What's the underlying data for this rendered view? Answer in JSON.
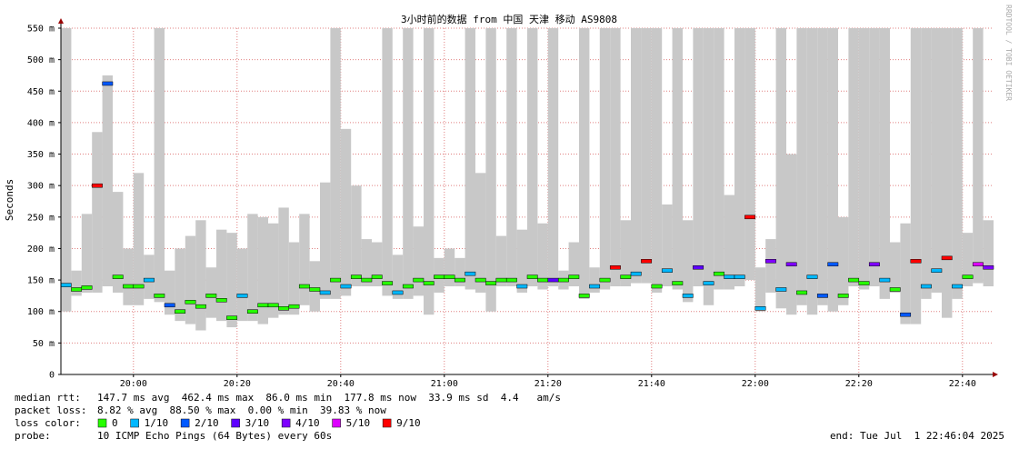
{
  "chart_data": {
    "type": "smokeping",
    "title": "3小时前的数据 from 中国 天津 移动 AS9808",
    "y_label": "Seconds",
    "watermark": "RRDTOOL / TOBI OETIKER",
    "xlim": [
      "19:46",
      "22:46"
    ],
    "xticks": [
      "20:00",
      "20:20",
      "20:40",
      "21:00",
      "21:20",
      "21:40",
      "22:00",
      "22:20",
      "22:40"
    ],
    "ylim": [
      0,
      550
    ],
    "yticks": [
      0,
      {
        "value": 50,
        "label": "50 m"
      },
      {
        "value": 100,
        "label": "100 m"
      },
      {
        "value": 150,
        "label": "150 m"
      },
      {
        "value": 200,
        "label": "200 m"
      },
      {
        "value": 250,
        "label": "250 m"
      },
      {
        "value": 300,
        "label": "300 m"
      },
      {
        "value": 350,
        "label": "350 m"
      },
      {
        "value": 400,
        "label": "400 m"
      },
      {
        "value": 450,
        "label": "450 m"
      },
      {
        "value": 500,
        "label": "500 m"
      },
      {
        "value": 550,
        "label": "550 m"
      }
    ],
    "grid": true,
    "smoke_color": "#c8c8c8",
    "x": [
      "19:46",
      "19:48",
      "19:50",
      "19:52",
      "19:54",
      "19:56",
      "19:58",
      "20:00",
      "20:02",
      "20:04",
      "20:06",
      "20:08",
      "20:10",
      "20:12",
      "20:14",
      "20:16",
      "20:18",
      "20:20",
      "20:22",
      "20:24",
      "20:26",
      "20:28",
      "20:30",
      "20:32",
      "20:34",
      "20:36",
      "20:38",
      "20:40",
      "20:42",
      "20:44",
      "20:46",
      "20:48",
      "20:50",
      "20:52",
      "20:54",
      "20:56",
      "20:58",
      "21:00",
      "21:02",
      "21:04",
      "21:06",
      "21:08",
      "21:10",
      "21:12",
      "21:14",
      "21:16",
      "21:18",
      "21:20",
      "21:22",
      "21:24",
      "21:26",
      "21:28",
      "21:30",
      "21:32",
      "21:34",
      "21:36",
      "21:38",
      "21:40",
      "21:42",
      "21:44",
      "21:46",
      "21:48",
      "21:50",
      "21:52",
      "21:54",
      "21:56",
      "21:58",
      "22:00",
      "22:02",
      "22:04",
      "22:06",
      "22:08",
      "22:10",
      "22:12",
      "22:14",
      "22:16",
      "22:18",
      "22:20",
      "22:22",
      "22:24",
      "22:26",
      "22:28",
      "22:30",
      "22:32",
      "22:34",
      "22:36",
      "22:38",
      "22:40",
      "22:42",
      "22:44"
    ],
    "median": [
      142,
      135,
      138,
      300,
      462,
      155,
      140,
      140,
      150,
      125,
      110,
      100,
      115,
      108,
      125,
      118,
      90,
      125,
      100,
      110,
      110,
      105,
      108,
      140,
      135,
      130,
      150,
      140,
      155,
      150,
      155,
      145,
      130,
      140,
      150,
      145,
      155,
      155,
      150,
      160,
      150,
      145,
      150,
      150,
      140,
      155,
      150,
      150,
      150,
      155,
      125,
      140,
      150,
      170,
      155,
      160,
      180,
      140,
      165,
      145,
      125,
      170,
      145,
      160,
      155,
      155,
      250,
      105,
      180,
      135,
      175,
      130,
      155,
      125,
      175,
      125,
      150,
      145,
      175,
      150,
      135,
      95,
      180,
      140,
      165,
      185,
      140,
      155,
      175,
      170
    ],
    "smoke_min": [
      100,
      125,
      130,
      130,
      140,
      130,
      110,
      110,
      120,
      115,
      95,
      85,
      80,
      70,
      90,
      85,
      75,
      85,
      85,
      80,
      90,
      95,
      95,
      110,
      100,
      120,
      120,
      125,
      140,
      140,
      140,
      125,
      120,
      120,
      125,
      95,
      130,
      140,
      140,
      135,
      130,
      100,
      140,
      140,
      130,
      140,
      135,
      140,
      135,
      140,
      120,
      130,
      135,
      140,
      140,
      145,
      145,
      130,
      140,
      135,
      115,
      140,
      110,
      135,
      135,
      140,
      150,
      100,
      130,
      105,
      95,
      110,
      95,
      110,
      100,
      110,
      140,
      135,
      140,
      120,
      130,
      80,
      80,
      120,
      130,
      90,
      120,
      140,
      145,
      140
    ],
    "smoke_max": [
      550,
      165,
      255,
      385,
      475,
      290,
      200,
      320,
      190,
      550,
      165,
      200,
      220,
      245,
      170,
      230,
      225,
      200,
      255,
      250,
      240,
      265,
      210,
      255,
      180,
      305,
      550,
      390,
      300,
      215,
      210,
      550,
      190,
      550,
      235,
      550,
      185,
      200,
      185,
      550,
      320,
      550,
      220,
      550,
      230,
      550,
      240,
      550,
      165,
      210,
      550,
      170,
      550,
      550,
      245,
      550,
      550,
      550,
      270,
      550,
      245,
      550,
      550,
      550,
      285,
      550,
      550,
      170,
      215,
      550,
      350,
      550,
      550,
      550,
      550,
      250,
      550,
      550,
      550,
      550,
      210,
      240,
      550,
      550,
      550,
      550,
      550,
      225,
      550,
      245
    ],
    "loss": [
      1,
      0,
      0,
      9,
      2,
      0,
      0,
      0,
      1,
      0,
      2,
      0,
      0,
      0,
      0,
      0,
      0,
      1,
      0,
      0,
      0,
      0,
      0,
      0,
      0,
      1,
      0,
      1,
      0,
      0,
      0,
      0,
      1,
      0,
      0,
      0,
      0,
      0,
      0,
      1,
      0,
      0,
      0,
      0,
      1,
      0,
      0,
      3,
      0,
      0,
      0,
      1,
      0,
      9,
      0,
      1,
      9,
      0,
      1,
      0,
      1,
      3,
      1,
      0,
      1,
      1,
      9,
      1,
      4,
      1,
      4,
      0,
      1,
      2,
      2,
      0,
      0,
      0,
      4,
      1,
      0,
      2,
      9,
      1,
      1,
      9,
      1,
      0,
      5,
      4
    ],
    "loss_legend": {
      "label": "loss color:",
      "items": [
        {
          "value": 0,
          "label": "0",
          "color": "#26ff00"
        },
        {
          "value": 1,
          "label": "1/10",
          "color": "#00b8ff"
        },
        {
          "value": 2,
          "label": "2/10",
          "color": "#0059ff"
        },
        {
          "value": 3,
          "label": "3/10",
          "color": "#5e00ff"
        },
        {
          "value": 4,
          "label": "4/10",
          "color": "#7e00ff"
        },
        {
          "value": 5,
          "label": "5/10",
          "color": "#dd00ff"
        },
        {
          "value": 9,
          "label": "9/10",
          "color": "#ff0000"
        }
      ]
    },
    "stats": [
      {
        "label": "median rtt:",
        "text": "147.7 ms avg  462.4 ms max  86.0 ms min  177.8 ms now  33.9 ms sd  4.4   am/s"
      },
      {
        "label": "packet loss:",
        "text": "8.82 % avg  88.50 % max  0.00 % min  39.83 % now"
      }
    ],
    "probe": {
      "label": "probe:",
      "text": "10 ICMP Echo Pings (64 Bytes) every 60s"
    },
    "end": "end: Tue Jul  1 22:46:04 2025"
  }
}
